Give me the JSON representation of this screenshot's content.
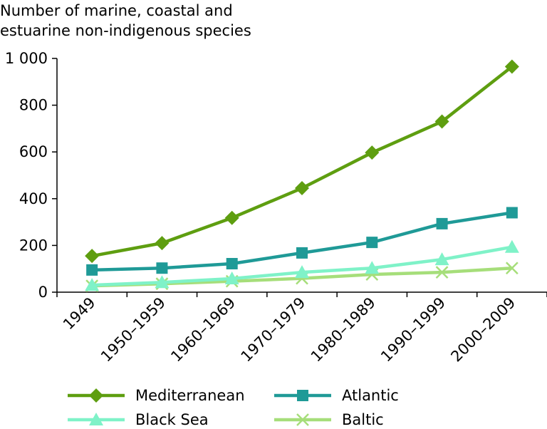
{
  "chart_data": {
    "type": "line",
    "title_lines": [
      "Number of marine, coastal and",
      "estuarine non-indigenous species"
    ],
    "xlabel": "",
    "ylabel": "",
    "categories": [
      "1949",
      "1950–1959",
      "1960–1969",
      "1970–1979",
      "1980–1989",
      "1990–1999",
      "2000–2009"
    ],
    "y_ticks": [
      0,
      200,
      400,
      600,
      800,
      1000
    ],
    "y_tick_labels": [
      "0",
      "200",
      "400",
      "600",
      "800",
      "1 000"
    ],
    "ylim": [
      0,
      1000
    ],
    "grid": false,
    "legend_position": "bottom",
    "series": [
      {
        "name": "Mediterranean",
        "marker": "diamond",
        "color": "#5e9e10",
        "values": [
          155,
          210,
          318,
          445,
          597,
          730,
          965
        ]
      },
      {
        "name": "Atlantic",
        "marker": "square",
        "color": "#1f9a97",
        "values": [
          95,
          103,
          122,
          168,
          213,
          293,
          340
        ]
      },
      {
        "name": "Black Sea",
        "marker": "triangle",
        "color": "#7ff2c8",
        "values": [
          30,
          42,
          58,
          85,
          103,
          140,
          193
        ]
      },
      {
        "name": "Baltic",
        "marker": "x",
        "color": "#a6de7a",
        "values": [
          27,
          36,
          47,
          59,
          76,
          85,
          103
        ]
      }
    ]
  }
}
